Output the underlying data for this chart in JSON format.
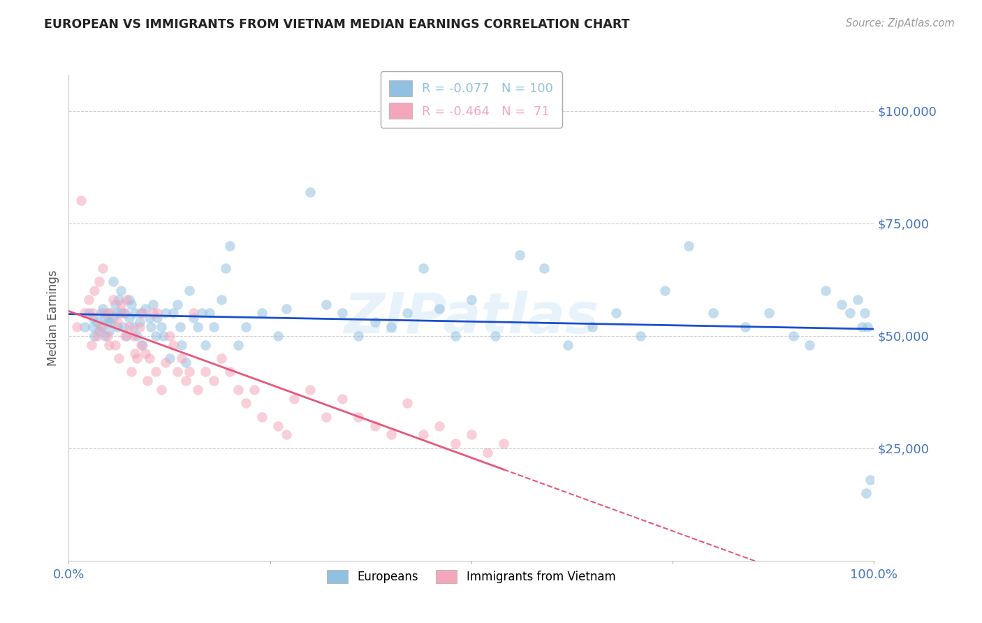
{
  "title": "EUROPEAN VS IMMIGRANTS FROM VIETNAM MEDIAN EARNINGS CORRELATION CHART",
  "source": "Source: ZipAtlas.com",
  "ylabel": "Median Earnings",
  "ytick_values": [
    25000,
    50000,
    75000,
    100000
  ],
  "ymin": 0,
  "ymax": 108000,
  "xmin": 0.0,
  "xmax": 1.0,
  "watermark": "ZIPatlas",
  "background_color": "#ffffff",
  "grid_color": "#cccccc",
  "title_color": "#222222",
  "axis_color": "#4472C4",
  "scatter_alpha": 0.55,
  "scatter_size": 110,
  "blue_color": "#92C0E0",
  "pink_color": "#F4A7BB",
  "line_blue": "#1A4FCC",
  "line_pink": "#E8567A",
  "eu_R": "-0.077",
  "eu_N": "100",
  "vn_R": "-0.464",
  "vn_N": " 71",
  "europeans_x": [
    0.02,
    0.025,
    0.03,
    0.03,
    0.032,
    0.035,
    0.038,
    0.04,
    0.04,
    0.042,
    0.045,
    0.045,
    0.048,
    0.05,
    0.05,
    0.052,
    0.055,
    0.055,
    0.058,
    0.06,
    0.06,
    0.062,
    0.065,
    0.065,
    0.068,
    0.07,
    0.072,
    0.075,
    0.075,
    0.078,
    0.08,
    0.082,
    0.085,
    0.088,
    0.09,
    0.092,
    0.095,
    0.1,
    0.102,
    0.105,
    0.108,
    0.11,
    0.115,
    0.118,
    0.12,
    0.125,
    0.13,
    0.135,
    0.138,
    0.14,
    0.145,
    0.15,
    0.155,
    0.16,
    0.165,
    0.17,
    0.175,
    0.18,
    0.19,
    0.195,
    0.2,
    0.21,
    0.22,
    0.24,
    0.26,
    0.27,
    0.3,
    0.32,
    0.34,
    0.36,
    0.38,
    0.4,
    0.42,
    0.44,
    0.46,
    0.48,
    0.5,
    0.53,
    0.56,
    0.59,
    0.62,
    0.65,
    0.68,
    0.71,
    0.74,
    0.77,
    0.8,
    0.84,
    0.87,
    0.9,
    0.92,
    0.94,
    0.96,
    0.97,
    0.98,
    0.985,
    0.988,
    0.99,
    0.992,
    0.995
  ],
  "europeans_y": [
    52000,
    55000,
    52000,
    54000,
    50000,
    53000,
    51000,
    55000,
    52000,
    56000,
    54000,
    50000,
    53000,
    55000,
    51000,
    53000,
    62000,
    54000,
    57000,
    55000,
    52000,
    58000,
    55000,
    60000,
    52000,
    55000,
    50000,
    58000,
    54000,
    57000,
    52000,
    55000,
    50000,
    53000,
    55000,
    48000,
    56000,
    54000,
    52000,
    57000,
    50000,
    54000,
    52000,
    50000,
    55000,
    45000,
    55000,
    57000,
    52000,
    48000,
    44000,
    60000,
    54000,
    52000,
    55000,
    48000,
    55000,
    52000,
    58000,
    65000,
    70000,
    48000,
    52000,
    55000,
    50000,
    56000,
    82000,
    57000,
    55000,
    50000,
    53000,
    52000,
    55000,
    65000,
    56000,
    50000,
    58000,
    50000,
    68000,
    65000,
    48000,
    52000,
    55000,
    50000,
    60000,
    70000,
    55000,
    52000,
    55000,
    50000,
    48000,
    60000,
    57000,
    55000,
    58000,
    52000,
    55000,
    15000,
    52000,
    18000
  ],
  "vietnam_x": [
    0.01,
    0.015,
    0.02,
    0.025,
    0.028,
    0.03,
    0.032,
    0.035,
    0.038,
    0.04,
    0.042,
    0.045,
    0.048,
    0.05,
    0.052,
    0.055,
    0.058,
    0.06,
    0.062,
    0.065,
    0.068,
    0.07,
    0.072,
    0.075,
    0.078,
    0.08,
    0.082,
    0.085,
    0.088,
    0.09,
    0.092,
    0.095,
    0.098,
    0.1,
    0.105,
    0.108,
    0.11,
    0.115,
    0.12,
    0.125,
    0.13,
    0.135,
    0.14,
    0.145,
    0.15,
    0.155,
    0.16,
    0.17,
    0.18,
    0.19,
    0.2,
    0.21,
    0.22,
    0.23,
    0.24,
    0.26,
    0.27,
    0.28,
    0.3,
    0.32,
    0.34,
    0.36,
    0.38,
    0.4,
    0.42,
    0.44,
    0.46,
    0.48,
    0.5,
    0.52,
    0.54
  ],
  "vietnam_y": [
    52000,
    80000,
    55000,
    58000,
    48000,
    55000,
    60000,
    50000,
    62000,
    52000,
    65000,
    55000,
    50000,
    48000,
    55000,
    58000,
    48000,
    53000,
    45000,
    57000,
    55000,
    50000,
    58000,
    52000,
    42000,
    50000,
    46000,
    45000,
    52000,
    48000,
    55000,
    46000,
    40000,
    45000,
    55000,
    42000,
    55000,
    38000,
    44000,
    50000,
    48000,
    42000,
    45000,
    40000,
    42000,
    55000,
    38000,
    42000,
    40000,
    45000,
    42000,
    38000,
    35000,
    38000,
    32000,
    30000,
    28000,
    36000,
    38000,
    32000,
    36000,
    32000,
    30000,
    28000,
    35000,
    28000,
    30000,
    26000,
    28000,
    24000,
    26000
  ]
}
